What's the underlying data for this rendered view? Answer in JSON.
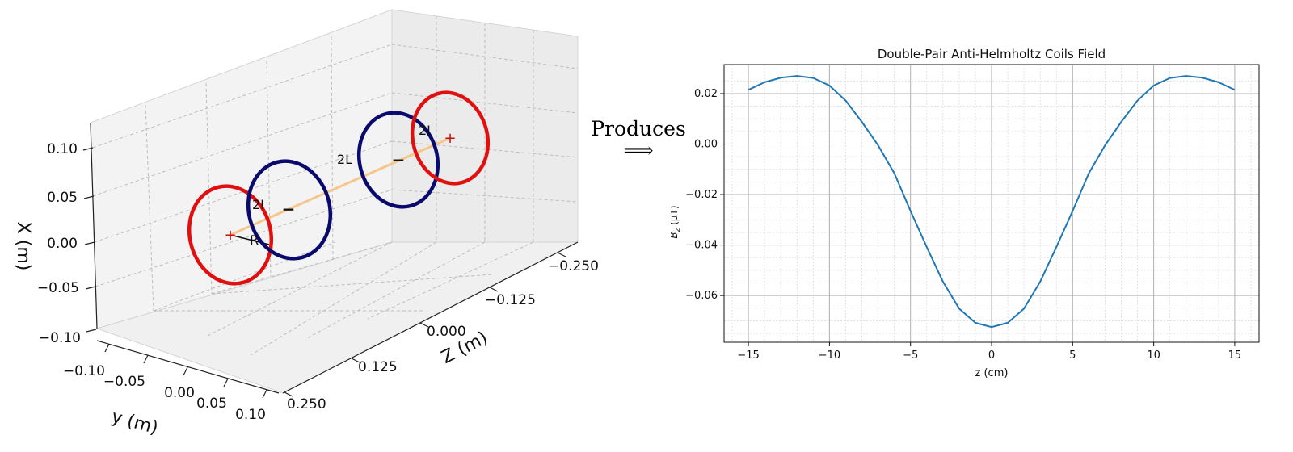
{
  "left_plot": {
    "type": "3d-line",
    "x_axis_label": "X (m)",
    "y_axis_label": "y (m)",
    "z_axis_label": "Z (m)",
    "x_ticks": [
      "0.10",
      "0.05",
      "0.00",
      "−0.05",
      "−0.10"
    ],
    "y_ticks": [
      "−0.10",
      "−0.05",
      "0.00",
      "0.05",
      "0.10"
    ],
    "z_ticks": [
      "−0.250",
      "−0.125",
      "0.000",
      "0.125",
      "0.250"
    ],
    "annotations": {
      "current_outer_1": "2I",
      "current_outer_2": "2I",
      "separation": "2L",
      "radius": "R",
      "plus_sign": "+",
      "minus_sign": "−"
    },
    "colors": {
      "outer_coils": "#e01010",
      "inner_coils": "#0a0a6e",
      "axis_line": "#f5c68a"
    }
  },
  "connector": {
    "label": "Produces",
    "arrow": "⟹"
  },
  "chart_data": {
    "type": "line",
    "title": "Double-Pair Anti-Helmholtz Coils Field",
    "xlabel": "z (cm)",
    "ylabel_main": "B",
    "ylabel_sub": "z",
    "ylabel_unit": " (μT)",
    "xlim": [
      -16.5,
      16.5
    ],
    "ylim": [
      -0.0785,
      0.0315
    ],
    "xticks": [
      -15,
      -10,
      -5,
      0,
      5,
      10,
      15
    ],
    "xtick_labels": [
      "−15",
      "−10",
      "−5",
      "0",
      "5",
      "10",
      "15"
    ],
    "yticks": [
      0.02,
      0.0,
      -0.02,
      -0.04,
      -0.06
    ],
    "ytick_labels": [
      "0.02",
      "0.00",
      "−0.02",
      "−0.04",
      "−0.06"
    ],
    "grid": true,
    "minor_grid": true,
    "zero_line": true,
    "line_color": "#1f77b4",
    "series": [
      {
        "x": [
          -15,
          -14,
          -13,
          -12,
          -11,
          -10,
          -9,
          -8,
          -7,
          -6,
          -5,
          -4,
          -3,
          -2,
          -1,
          0,
          1,
          2,
          3,
          4,
          5,
          6,
          7,
          8,
          9,
          10,
          11,
          12,
          13,
          14,
          15
        ],
        "y": [
          0.0215,
          0.0245,
          0.0263,
          0.027,
          0.0262,
          0.0232,
          0.0172,
          0.0088,
          -0.0005,
          -0.0115,
          -0.0265,
          -0.0408,
          -0.0545,
          -0.0652,
          -0.0708,
          -0.0725,
          -0.0708,
          -0.0652,
          -0.0545,
          -0.0408,
          -0.0265,
          -0.0115,
          -0.0005,
          0.0088,
          0.0172,
          0.0232,
          0.0262,
          0.027,
          0.0263,
          0.0245,
          0.0215
        ]
      }
    ]
  }
}
